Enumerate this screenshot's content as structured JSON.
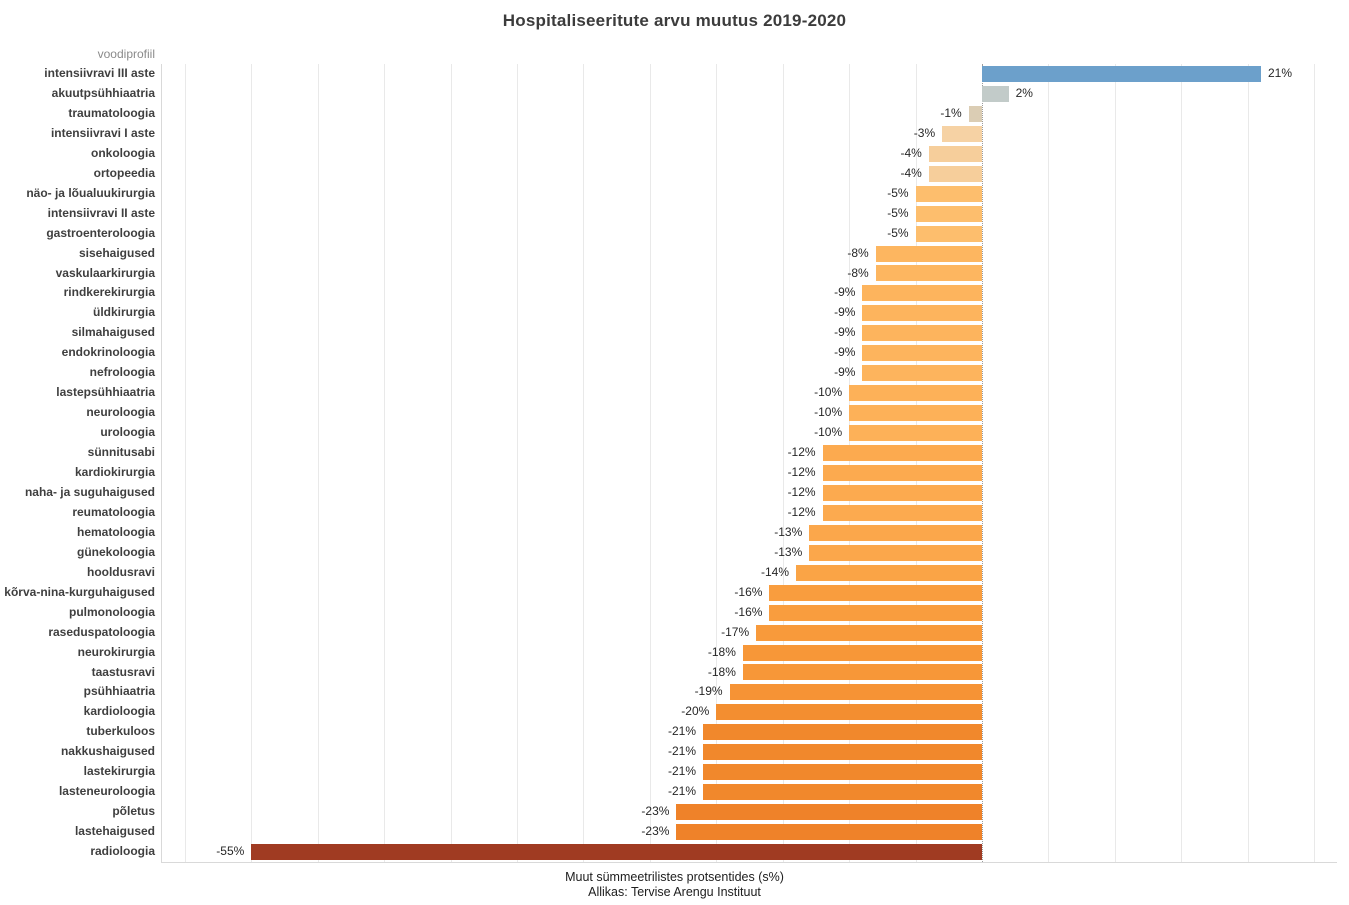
{
  "title": "Hospitaliseeritute arvu muutus 2019-2020",
  "column_header": "voodiprofiil",
  "x_axis": {
    "caption": "Muut sümmeetrilistes protsentides (s%)",
    "source": "Allikas: Tervise Arengu Instituut",
    "gridline_step": 5,
    "gridline_min": -60,
    "gridline_max": 25
  },
  "colors": {
    "positive_strong": "#6CA0CB",
    "neutral": "#C2CBC9",
    "negative_extreme": "#A03B22",
    "gridline": "#e9e9e9",
    "zero_line_dotted": "#9b9b9b"
  },
  "chart_data": {
    "type": "bar",
    "orientation": "horizontal",
    "title": "Hospitaliseeritute arvu muutus 2019-2020",
    "xlabel": "Muut sümmeetrilistes protsentides (s%)",
    "ylabel": "voodiprofiil",
    "xlim": [
      -61.7,
      26.7
    ],
    "grid": true,
    "categories": [
      "intensiivravi III aste",
      "akuutpsühhiaatria",
      "traumatoloogia",
      "intensiivravi I aste",
      "onkoloogia",
      "ortopeedia",
      "näo- ja lõualuukirurgia",
      "intensiivravi II aste",
      "gastroenteroloogia",
      "sisehaigused",
      "vaskulaarkirurgia",
      "rindkerekirurgia",
      "üldkirurgia",
      "silmahaigused",
      "endokrinoloogia",
      "nefroloogia",
      "lastepsühhiaatria",
      "neuroloogia",
      "uroloogia",
      "sünnitusabi",
      "kardiokirurgia",
      "naha- ja suguhaigused",
      "reumatoloogia",
      "hematoloogia",
      "günekoloogia",
      "hooldusravi",
      "kõrva-nina-kurguhaigused",
      "pulmonoloogia",
      "raseduspatoloogia",
      "neurokirurgia",
      "taastusravi",
      "psühhiaatria",
      "kardioloogia",
      "tuberkuloos",
      "nakkushaigused",
      "lastekirurgia",
      "lasteneuroloogia",
      "põletus",
      "lastehaigused",
      "radioloogia"
    ],
    "values": [
      21,
      2,
      -1,
      -3,
      -4,
      -4,
      -5,
      -5,
      -5,
      -8,
      -8,
      -9,
      -9,
      -9,
      -9,
      -9,
      -10,
      -10,
      -10,
      -12,
      -12,
      -12,
      -12,
      -13,
      -13,
      -14,
      -16,
      -16,
      -17,
      -18,
      -18,
      -19,
      -20,
      -21,
      -21,
      -21,
      -21,
      -23,
      -23,
      -55
    ],
    "value_labels": [
      "21%",
      "2%",
      "-1%",
      "-3%",
      "-4%",
      "-4%",
      "-5%",
      "-5%",
      "-5%",
      "-8%",
      "-8%",
      "-9%",
      "-9%",
      "-9%",
      "-9%",
      "-9%",
      "-10%",
      "-10%",
      "-10%",
      "-12%",
      "-12%",
      "-12%",
      "-12%",
      "-13%",
      "-13%",
      "-14%",
      "-16%",
      "-16%",
      "-17%",
      "-18%",
      "-18%",
      "-19%",
      "-20%",
      "-21%",
      "-21%",
      "-21%",
      "-21%",
      "-23%",
      "-23%",
      "-55%"
    ],
    "bar_colors": [
      "#6CA0CB",
      "#C2CBC9",
      "#DBCDB4",
      "#F6D2A4",
      "#F6CE9B",
      "#F6CE9B",
      "#FDBE6D",
      "#FDBE6D",
      "#FDBE6D",
      "#FDB660",
      "#FDB660",
      "#FDB45D",
      "#FDB45D",
      "#FDB45D",
      "#FDB45D",
      "#FDB45D",
      "#FDB158",
      "#FDB158",
      "#FDB158",
      "#FCAA4F",
      "#FCAA4F",
      "#FCAA4F",
      "#FCAA4F",
      "#FBA74B",
      "#FBA74B",
      "#FAA446",
      "#F99D3E",
      "#F99D3E",
      "#F89A3B",
      "#F79738",
      "#F79738",
      "#F69335",
      "#F38E30",
      "#F1882C",
      "#F1882C",
      "#F1882C",
      "#F1882C",
      "#EF8229",
      "#EF8229",
      "#A03B22"
    ],
    "legend": null
  }
}
